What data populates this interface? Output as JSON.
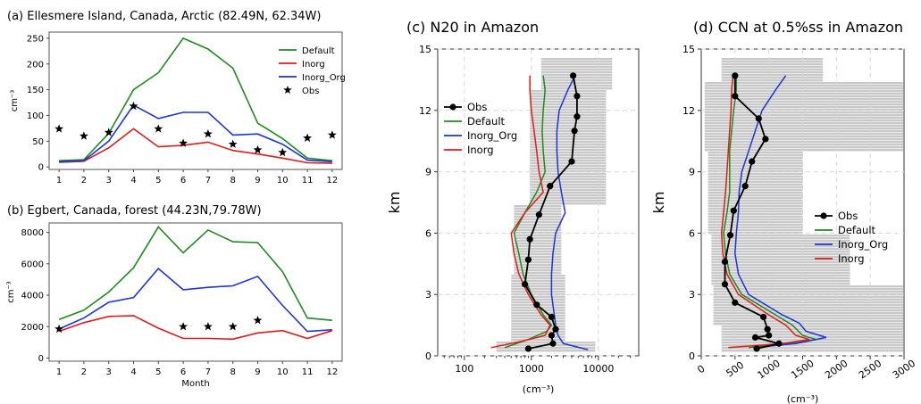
{
  "chart_data": [
    {
      "type": "line",
      "title": "(a)  Ellesmere Island, Canada, Arctic (82.49N, 62.34W)",
      "xlabel": "",
      "ylabel": "cm⁻³",
      "x": [
        1,
        2,
        3,
        4,
        5,
        6,
        7,
        8,
        9,
        10,
        11,
        12
      ],
      "xlim": [
        0.6,
        12.4
      ],
      "ylim": [
        -5,
        262
      ],
      "yticks": [
        0,
        50,
        100,
        150,
        200,
        250
      ],
      "legend": "top-right",
      "series": [
        {
          "name": "Default",
          "color": "#1f8a1f",
          "style": "line",
          "values": [
            12,
            14,
            65,
            150,
            183,
            250,
            229,
            192,
            85,
            55,
            17,
            12
          ]
        },
        {
          "name": "Inorg",
          "color": "#e01b1b",
          "style": "line",
          "values": [
            9,
            11,
            37,
            74,
            39,
            42,
            48,
            32,
            25,
            17,
            8,
            7
          ]
        },
        {
          "name": "Inorg_Org",
          "color": "#1c35d4",
          "style": "line",
          "values": [
            10,
            12,
            50,
            120,
            94,
            106,
            106,
            62,
            64,
            44,
            13,
            10
          ]
        },
        {
          "name": "Obs",
          "color": "#000000",
          "style": "star",
          "values": [
            74,
            60,
            67,
            118,
            74,
            46,
            64,
            44,
            33,
            28,
            56,
            62
          ]
        }
      ]
    },
    {
      "type": "line",
      "title": "(b)  Egbert, Canada, forest (44.23N,79.78W)",
      "xlabel": "Month",
      "ylabel": "cm⁻³",
      "x": [
        1,
        2,
        3,
        4,
        5,
        6,
        7,
        8,
        9,
        10,
        11,
        12
      ],
      "xlim": [
        0.6,
        12.4
      ],
      "ylim": [
        -200,
        8600
      ],
      "yticks": [
        0,
        2000,
        4000,
        6000,
        8000
      ],
      "series": [
        {
          "name": "Default",
          "color": "#1f8a1f",
          "style": "line",
          "values": [
            2450,
            3050,
            4200,
            5750,
            8350,
            6700,
            8150,
            7400,
            7350,
            5500,
            2550,
            2400
          ]
        },
        {
          "name": "Inorg_Org",
          "color": "#1c35d4",
          "style": "line",
          "values": [
            1850,
            2550,
            3550,
            3850,
            5700,
            4350,
            4500,
            4600,
            5200,
            3350,
            1700,
            1800
          ]
        },
        {
          "name": "Inorg",
          "color": "#e01b1b",
          "style": "line",
          "values": [
            1700,
            2250,
            2650,
            2700,
            1900,
            1250,
            1250,
            1200,
            1600,
            1750,
            1250,
            1750
          ]
        },
        {
          "name": "Obs",
          "color": "#000000",
          "style": "star",
          "x": [
            1,
            6,
            7,
            8,
            9
          ],
          "values": [
            1850,
            2000,
            2000,
            2000,
            2400
          ]
        }
      ]
    },
    {
      "type": "line",
      "title": "(c) N20 in Amazon",
      "xlabel": "(cm⁻³)",
      "ylabel": "km",
      "xscale": "log",
      "xlim": [
        40,
        40000
      ],
      "ylim": [
        0,
        15
      ],
      "xticks": [
        100,
        1000,
        10000
      ],
      "yticks": [
        0,
        3,
        6,
        9,
        12,
        15
      ],
      "legend": "upper-left",
      "series": [
        {
          "name": "Obs",
          "color": "#000000",
          "style": "line-marker",
          "y": [
            0.35,
            0.6,
            1.0,
            1.3,
            1.9,
            2.5,
            3.5,
            4.7,
            5.7,
            6.9,
            8.3,
            9.5,
            11.0,
            11.7,
            12.7,
            13.7
          ],
          "values": [
            900,
            2100,
            2000,
            2300,
            2000,
            1200,
            800,
            900,
            950,
            1300,
            1900,
            4000,
            4400,
            4800,
            4800,
            4200
          ]
        },
        {
          "name": "Default",
          "color": "#1f8a1f",
          "style": "line",
          "y": [
            0.4,
            0.8,
            1.2,
            1.5,
            2.0,
            3.0,
            4.0,
            5.0,
            6.0,
            7.0,
            8.0,
            9.0,
            10.0,
            11.0,
            12.0,
            13.0,
            13.7
          ],
          "values": [
            400,
            900,
            1700,
            2000,
            1500,
            1000,
            750,
            650,
            550,
            800,
            1200,
            1600,
            1500,
            1450,
            1500,
            1600,
            1500
          ]
        },
        {
          "name": "Inorg_Org",
          "color": "#1c35d4",
          "style": "line",
          "y": [
            0.3,
            0.6,
            1.0,
            1.5,
            2.0,
            3.0,
            4.0,
            5.0,
            6.0,
            7.0,
            8.0,
            9.0,
            10.0,
            11.0,
            12.0,
            13.0,
            13.7
          ],
          "values": [
            7000,
            3000,
            2500,
            2300,
            2200,
            2000,
            2000,
            2100,
            2300,
            3200,
            2800,
            2500,
            2400,
            2400,
            2600,
            3500,
            4500
          ]
        },
        {
          "name": "Inorg",
          "color": "#e01b1b",
          "style": "line",
          "y": [
            0.4,
            0.7,
            1.0,
            1.5,
            2.0,
            3.0,
            4.0,
            5.0,
            6.0,
            7.0,
            8.0,
            9.0,
            10.0,
            11.0,
            12.0,
            13.0,
            13.7
          ],
          "values": [
            250,
            700,
            1600,
            1900,
            1400,
            900,
            650,
            550,
            500,
            800,
            1500,
            1300,
            1200,
            1100,
            1000,
            950,
            950
          ]
        }
      ]
    },
    {
      "type": "line",
      "title": "(d) CCN at 0.5%ss in Amazon",
      "xlabel": "(cm⁻³)",
      "ylabel": "km",
      "xlim": [
        0,
        3000
      ],
      "ylim": [
        0,
        15
      ],
      "xticks": [
        0,
        500,
        1000,
        1500,
        2000,
        2500,
        3000
      ],
      "yticks": [
        0,
        3,
        6,
        9,
        12,
        15
      ],
      "legend": "center-right",
      "series": [
        {
          "name": "Obs",
          "color": "#000000",
          "style": "line-marker",
          "y": [
            0.35,
            0.6,
            0.9,
            1.0,
            1.3,
            1.9,
            2.6,
            3.5,
            4.6,
            5.9,
            7.1,
            8.3,
            9.5,
            10.6,
            11.6,
            12.7,
            13.7
          ],
          "values": [
            820,
            1150,
            800,
            1000,
            980,
            920,
            500,
            350,
            350,
            430,
            480,
            650,
            750,
            950,
            850,
            500,
            500
          ]
        },
        {
          "name": "Default",
          "color": "#1f8a1f",
          "style": "line",
          "y": [
            0.4,
            0.6,
            0.8,
            1.0,
            1.5,
            2.0,
            3.0,
            4.0,
            5.0,
            6.0,
            7.0,
            8.0,
            9.0,
            10.0,
            11.0,
            12.0,
            13.0,
            13.7
          ],
          "values": [
            700,
            1300,
            1700,
            1500,
            1350,
            1100,
            600,
            420,
            360,
            330,
            380,
            420,
            420,
            420,
            450,
            480,
            520,
            520
          ]
        },
        {
          "name": "Inorg_Org",
          "color": "#1c35d4",
          "style": "line",
          "y": [
            0.4,
            0.6,
            0.9,
            1.2,
            1.6,
            2.0,
            3.0,
            4.0,
            5.0,
            6.0,
            7.0,
            8.0,
            9.0,
            10.0,
            11.0,
            12.0,
            13.0,
            13.7
          ],
          "values": [
            800,
            1400,
            1850,
            1550,
            1450,
            1200,
            700,
            550,
            500,
            520,
            550,
            560,
            600,
            700,
            800,
            900,
            1100,
            1250
          ]
        },
        {
          "name": "Inorg",
          "color": "#e01b1b",
          "style": "line",
          "y": [
            0.4,
            0.6,
            0.8,
            1.0,
            1.5,
            2.0,
            3.0,
            4.0,
            5.0,
            6.0,
            7.0,
            8.0,
            9.0,
            10.0,
            11.0,
            12.0,
            13.0,
            13.7
          ],
          "values": [
            400,
            1200,
            1600,
            1400,
            1250,
            1000,
            550,
            380,
            320,
            300,
            330,
            360,
            380,
            400,
            420,
            440,
            450,
            470
          ]
        }
      ]
    }
  ]
}
